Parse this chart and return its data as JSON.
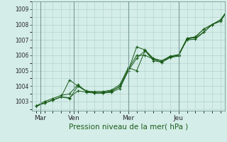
{
  "background_color": "#d4ede8",
  "grid_color": "#b0cfc8",
  "line_color": "#1a5c1a",
  "title": "Pression niveau de la mer( hPa )",
  "ylabel_values": [
    1003,
    1004,
    1005,
    1006,
    1007,
    1008,
    1009
  ],
  "ylim": [
    1002.4,
    1009.5
  ],
  "xlim": [
    -0.5,
    22.5
  ],
  "xtick_positions": [
    0.5,
    4.5,
    11,
    17
  ],
  "xtick_labels": [
    "Mar",
    "Ven",
    "Mer",
    "Jeu"
  ],
  "vline_positions": [
    0.5,
    4.5,
    11,
    17
  ],
  "series": [
    [
      1002.7,
      1002.9,
      1003.1,
      1003.3,
      1004.4,
      1004.0,
      1003.7,
      1003.6,
      1003.6,
      1003.7,
      1003.95,
      1005.0,
      1006.55,
      1006.35,
      1005.8,
      1005.65,
      1005.9,
      1006.0,
      1007.05,
      1007.15,
      1007.5,
      1008.0,
      1008.3,
      1009.05
    ],
    [
      1002.7,
      1002.9,
      1003.1,
      1003.3,
      1003.25,
      1003.7,
      1003.6,
      1003.55,
      1003.55,
      1003.6,
      1003.85,
      1005.0,
      1005.8,
      1006.3,
      1005.65,
      1005.55,
      1005.85,
      1005.95,
      1007.1,
      1007.2,
      1007.7,
      1008.0,
      1008.2,
      1009.05
    ],
    [
      1002.7,
      1002.9,
      1003.1,
      1003.3,
      1003.2,
      1004.0,
      1003.65,
      1003.55,
      1003.55,
      1003.65,
      1004.0,
      1005.1,
      1006.0,
      1006.0,
      1005.75,
      1005.55,
      1005.9,
      1006.0,
      1007.0,
      1007.05,
      1007.5,
      1008.0,
      1008.3,
      1009.05
    ],
    [
      1002.7,
      1003.0,
      1003.2,
      1003.4,
      1003.5,
      1004.1,
      1003.65,
      1003.65,
      1003.65,
      1003.75,
      1004.1,
      1005.2,
      1005.0,
      1006.3,
      1005.75,
      1005.65,
      1005.95,
      1006.05,
      1007.1,
      1007.2,
      1007.7,
      1008.0,
      1008.3,
      1009.05
    ]
  ]
}
